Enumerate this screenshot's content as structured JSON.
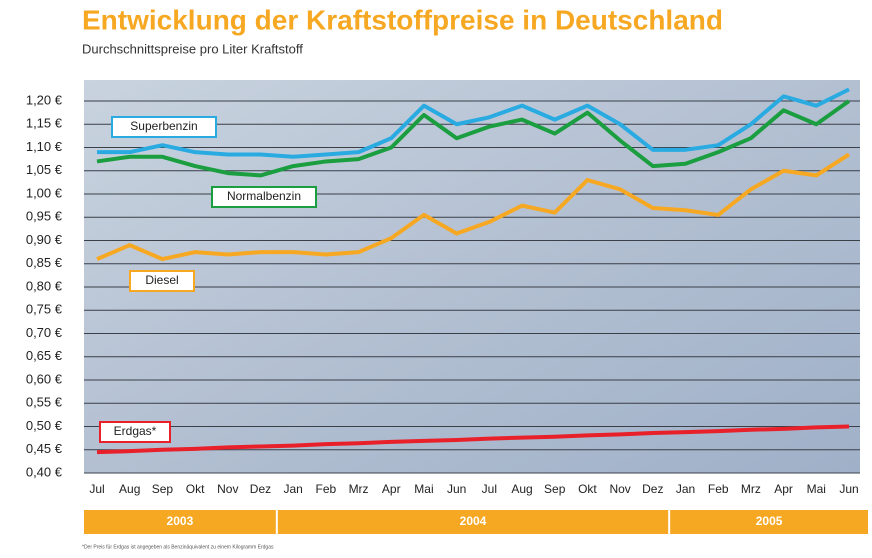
{
  "chart_data": {
    "type": "line",
    "title": "Entwicklung der Kraftstoffpreise in Deutschland",
    "subtitle": "Durchschnittspreise pro Liter Kraftstoff",
    "categories": [
      "Jul",
      "Aug",
      "Sep",
      "Okt",
      "Nov",
      "Dez",
      "Jan",
      "Feb",
      "Mrz",
      "Apr",
      "Mai",
      "Jun",
      "Jul",
      "Aug",
      "Sep",
      "Okt",
      "Nov",
      "Dez",
      "Jan",
      "Feb",
      "Mrz",
      "Apr",
      "Mai",
      "Jun"
    ],
    "year_groups": [
      {
        "label": "2003",
        "months": 6
      },
      {
        "label": "2004",
        "months": 12
      },
      {
        "label": "2005",
        "months": 6
      }
    ],
    "series": [
      {
        "name": "Superbenzin",
        "color": "#29abe2",
        "values": [
          1.09,
          1.09,
          1.105,
          1.09,
          1.085,
          1.085,
          1.08,
          1.085,
          1.09,
          1.12,
          1.19,
          1.15,
          1.165,
          1.19,
          1.16,
          1.19,
          1.15,
          1.095,
          1.095,
          1.105,
          1.15,
          1.21,
          1.19,
          1.225
        ]
      },
      {
        "name": "Normalbenzin",
        "color": "#1a9e3f",
        "values": [
          1.07,
          1.08,
          1.08,
          1.06,
          1.045,
          1.04,
          1.06,
          1.07,
          1.075,
          1.1,
          1.17,
          1.12,
          1.145,
          1.16,
          1.13,
          1.175,
          1.115,
          1.06,
          1.065,
          1.09,
          1.12,
          1.18,
          1.15,
          1.2
        ]
      },
      {
        "name": "Diesel",
        "color": "#f7a823",
        "values": [
          0.86,
          0.89,
          0.86,
          0.875,
          0.87,
          0.875,
          0.875,
          0.87,
          0.875,
          0.905,
          0.955,
          0.915,
          0.94,
          0.975,
          0.96,
          1.03,
          1.01,
          0.97,
          0.965,
          0.955,
          1.01,
          1.05,
          1.04,
          1.085
        ]
      },
      {
        "name": "Erdgas*",
        "color": "#e8202a",
        "values": [
          0.445,
          0.447,
          0.45,
          0.452,
          0.455,
          0.457,
          0.459,
          0.462,
          0.464,
          0.467,
          0.469,
          0.471,
          0.474,
          0.476,
          0.478,
          0.481,
          0.483,
          0.486,
          0.488,
          0.49,
          0.493,
          0.495,
          0.498,
          0.5
        ]
      }
    ],
    "ylim": [
      0.4,
      1.2
    ],
    "yticks": [
      {
        "value": 0.4,
        "label": "0,40 €"
      },
      {
        "value": 0.45,
        "label": "0,45 €"
      },
      {
        "value": 0.5,
        "label": "0,50 €"
      },
      {
        "value": 0.55,
        "label": "0,55 €"
      },
      {
        "value": 0.6,
        "label": "0,60 €"
      },
      {
        "value": 0.65,
        "label": "0,65 €"
      },
      {
        "value": 0.7,
        "label": "0,70 €"
      },
      {
        "value": 0.75,
        "label": "0,75 €"
      },
      {
        "value": 0.8,
        "label": "0,80 €"
      },
      {
        "value": 0.85,
        "label": "0,85 €"
      },
      {
        "value": 0.9,
        "label": "0,90 €"
      },
      {
        "value": 0.95,
        "label": "0,95 €"
      },
      {
        "value": 1.0,
        "label": "1,00 €"
      },
      {
        "value": 1.05,
        "label": "1,05 €"
      },
      {
        "value": 1.1,
        "label": "1,10 €"
      },
      {
        "value": 1.15,
        "label": "1,15 €"
      },
      {
        "value": 1.2,
        "label": "1,20 €"
      }
    ],
    "grid": true,
    "footnote": "*Der Preis für Erdgas ist angegeben als Benzinäquivalent zu einem Kilogramm Erdgas"
  }
}
